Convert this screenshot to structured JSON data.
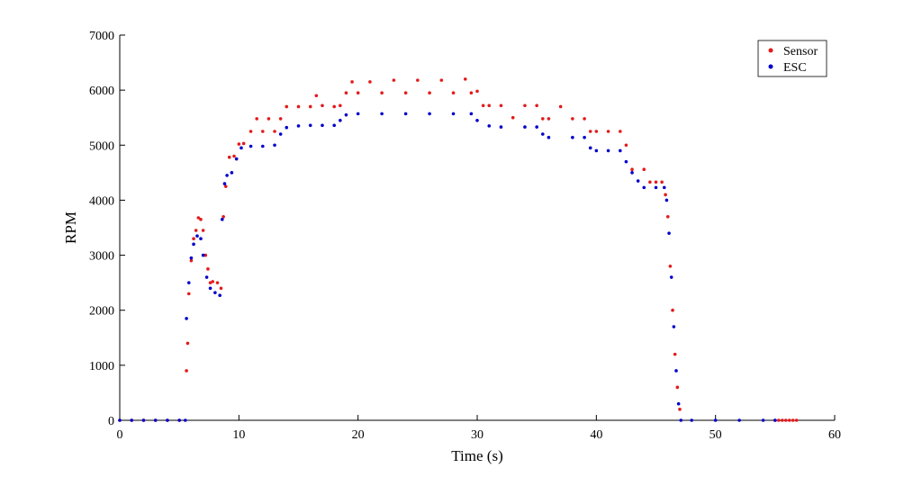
{
  "chart_data": {
    "type": "scatter",
    "xlabel": "Time (s)",
    "ylabel": "RPM",
    "xlim": [
      0,
      60
    ],
    "ylim": [
      0,
      7000
    ],
    "xticks": [
      0,
      10,
      20,
      30,
      40,
      50,
      60
    ],
    "yticks": [
      0,
      1000,
      2000,
      3000,
      4000,
      5000,
      6000,
      7000
    ],
    "legend": "upper right",
    "series": [
      {
        "name": "Sensor",
        "color": "#e41a1c",
        "x": [
          0,
          1,
          2,
          3,
          4,
          5,
          5.6,
          5.7,
          5.8,
          6.0,
          6.2,
          6.4,
          6.6,
          6.8,
          7.0,
          7.2,
          7.4,
          7.6,
          7.8,
          8.2,
          8.5,
          8.7,
          8.9,
          9.2,
          9.6,
          10,
          10.4,
          11,
          11.5,
          12,
          12.5,
          13,
          13.5,
          14,
          15,
          16,
          16.5,
          17,
          18,
          18.5,
          19,
          19.5,
          20,
          21,
          22,
          23,
          24,
          25,
          26,
          27,
          28,
          29,
          29.5,
          30,
          30.5,
          31,
          32,
          33,
          34,
          35,
          35.5,
          36,
          37,
          38,
          39,
          39.5,
          40,
          41,
          42,
          42.5,
          43,
          44,
          44.5,
          45,
          45.5,
          45.8,
          46,
          46.2,
          46.4,
          46.6,
          46.8,
          47,
          55,
          55.3,
          55.6,
          55.9,
          56.2,
          56.5,
          56.8
        ],
        "values": [
          0,
          0,
          0,
          0,
          0,
          0,
          900,
          1400,
          2300,
          2900,
          3300,
          3450,
          3680,
          3650,
          3450,
          3000,
          2750,
          2500,
          2520,
          2500,
          2400,
          3700,
          4250,
          4780,
          4800,
          5020,
          5030,
          5250,
          5480,
          5250,
          5480,
          5250,
          5480,
          5700,
          5700,
          5700,
          5900,
          5720,
          5700,
          5720,
          5950,
          6150,
          5950,
          6150,
          5950,
          6180,
          5950,
          6180,
          5950,
          6180,
          5950,
          6200,
          5950,
          5980,
          5720,
          5720,
          5720,
          5500,
          5720,
          5720,
          5480,
          5480,
          5700,
          5480,
          5480,
          5250,
          5250,
          5250,
          5250,
          5000,
          4560,
          4560,
          4330,
          4330,
          4330,
          4100,
          3700,
          2800,
          2000,
          1200,
          600,
          200,
          0,
          0,
          0,
          0,
          0,
          0,
          0
        ]
      },
      {
        "name": "ESC",
        "color": "#0000cc",
        "x": [
          0,
          1,
          2,
          3,
          4,
          5,
          5.5,
          5.6,
          5.8,
          6.0,
          6.2,
          6.5,
          6.8,
          7.0,
          7.3,
          7.6,
          8.0,
          8.4,
          8.6,
          8.8,
          9.0,
          9.4,
          9.8,
          10.2,
          11,
          12,
          13,
          13.5,
          14,
          15,
          16,
          17,
          18,
          18.5,
          19,
          20,
          22,
          24,
          26,
          28,
          29.5,
          30,
          31,
          32,
          34,
          35,
          35.5,
          36,
          38,
          39,
          39.5,
          40,
          41,
          42,
          42.5,
          43,
          43.5,
          44,
          45,
          45.7,
          45.9,
          46.1,
          46.3,
          46.5,
          46.7,
          46.9,
          47.1,
          48,
          50,
          52,
          54,
          55
        ],
        "values": [
          0,
          0,
          0,
          0,
          0,
          0,
          0,
          1850,
          2500,
          2950,
          3200,
          3350,
          3300,
          3000,
          2600,
          2400,
          2320,
          2270,
          3650,
          4300,
          4450,
          4500,
          4750,
          4950,
          4980,
          4980,
          5000,
          5200,
          5320,
          5350,
          5360,
          5360,
          5360,
          5450,
          5550,
          5570,
          5570,
          5570,
          5570,
          5570,
          5570,
          5450,
          5350,
          5330,
          5330,
          5330,
          5200,
          5140,
          5140,
          5140,
          4950,
          4900,
          4900,
          4900,
          4700,
          4500,
          4350,
          4230,
          4230,
          4230,
          4000,
          3400,
          2600,
          1700,
          900,
          300,
          0,
          0,
          0,
          0,
          0,
          0
        ]
      }
    ]
  }
}
